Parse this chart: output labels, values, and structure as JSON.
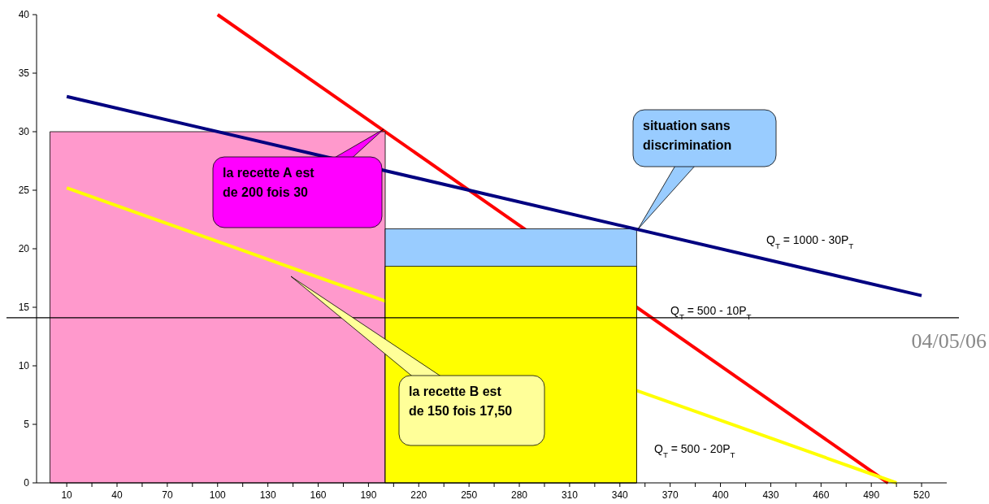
{
  "chart_data": {
    "type": "line",
    "xlim": [
      -8,
      535
    ],
    "xticks": [
      10,
      {
        "value": 25,
        "label": null
      },
      40,
      {
        "value": 55,
        "label": null
      },
      70,
      {
        "value": 85,
        "label": null
      },
      100,
      {
        "value": 115,
        "label": null
      },
      130,
      {
        "value": 145,
        "label": null
      },
      160,
      {
        "value": 175,
        "label": null
      },
      190,
      {
        "value": 205,
        "label": null
      },
      220,
      {
        "value": 235,
        "label": null
      },
      250,
      {
        "value": 265,
        "label": null
      },
      280,
      {
        "value": 295,
        "label": null
      },
      310,
      {
        "value": 325,
        "label": null
      },
      340,
      {
        "value": 355,
        "label": null
      },
      370,
      {
        "value": 385,
        "label": null
      },
      400,
      {
        "value": 415,
        "label": null
      },
      430,
      {
        "value": 445,
        "label": null
      },
      460,
      {
        "value": 475,
        "label": null
      },
      490,
      {
        "value": 505,
        "label": null
      },
      520
    ],
    "ylim": [
      0,
      40
    ],
    "yticks": [
      0,
      5,
      10,
      15,
      20,
      25,
      30,
      35,
      40
    ],
    "marker": "none",
    "line_style": "solid",
    "series": [
      {
        "color": "#ff0000",
        "x": [
          100,
          500
        ],
        "values": [
          40,
          0
        ]
      },
      {
        "type": "area",
        "color": "#ff99cc",
        "x": [
          0,
          200
        ],
        "values": [
          30,
          30
        ]
      },
      {
        "color": "#ffff00",
        "x": [
          10,
          505
        ],
        "values": [
          25.2,
          0
        ]
      },
      {
        "type": "area",
        "color": "#99ccff",
        "x": [
          200,
          350
        ],
        "values": [
          21.7,
          21.7
        ]
      },
      {
        "type": "area",
        "color": "#ffff00",
        "x": [
          200,
          350
        ],
        "values": [
          18.5,
          18.5
        ]
      },
      {
        "color": "#000080",
        "x": [
          10,
          520
        ],
        "values": [
          33,
          16
        ]
      }
    ],
    "ref_lines": [
      {
        "axis": "y",
        "value": 14.1,
        "color": "#000000"
      }
    ],
    "annotations": [
      "la recette A est de 200 fois 30",
      "la recette B est de 150 fois 17,50",
      "situation sans discrimination",
      "Q$_{T}$ = 1000 - 30P$_{T}$",
      "Q$_{T}$ = 500 - 10P$_{T}$",
      "Q$_{T}$ = 500 - 20P$_{T}$",
      "04/05/06"
    ]
  }
}
